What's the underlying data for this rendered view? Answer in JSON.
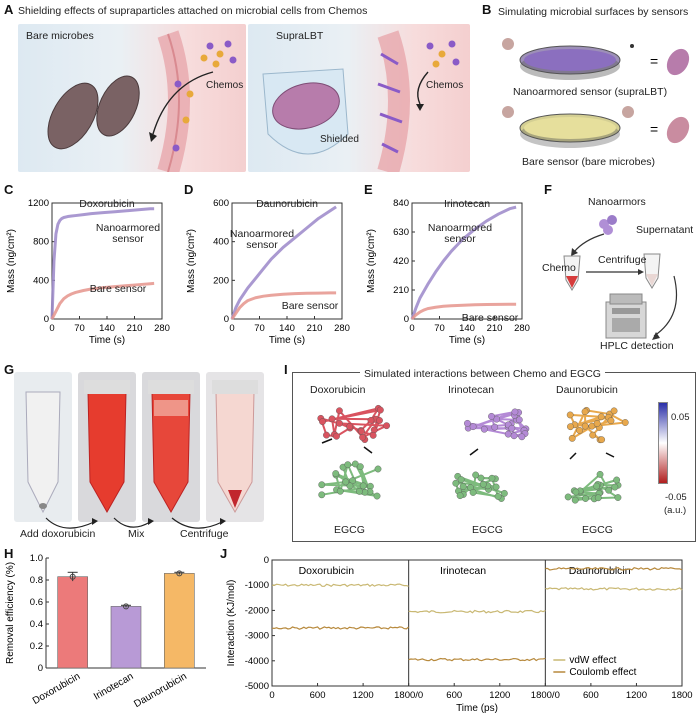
{
  "panel_labels": {
    "A": "A",
    "B": "B",
    "C": "C",
    "D": "D",
    "E": "E",
    "F": "F",
    "G": "G",
    "H": "H",
    "I": "I",
    "J": "J"
  },
  "panelA": {
    "title": "Shielding effects of supraparticles attached on microbial cells from Chemos",
    "left_label": "Bare microbes",
    "right_label": "SupraLBT",
    "chemos_left": "Chemos",
    "chemos_right": "Chemos",
    "shielded": "Shielded"
  },
  "panelB": {
    "title": "Simulating microbial surfaces by sensors",
    "top_caption": "Nanoarmored sensor (supraLBT)",
    "bottom_caption": "Bare sensor (bare microbes)",
    "equals": "="
  },
  "panelF": {
    "nanoarmors": "Nanoarmors",
    "supernatant": "Supernatant",
    "chemo": "Chemo",
    "centrifuge": "Centrifuge",
    "hplc": "HPLC detection"
  },
  "panelG": {
    "step1": "Add doxorubicin",
    "step2": "Mix",
    "step3": "Centrifuge"
  },
  "panelI": {
    "title": "Simulated interactions between Chemo and EGCG",
    "molecules": [
      "Doxorubicin",
      "Irinotecan",
      "Daunorubicin"
    ],
    "partner": [
      "EGCG",
      "EGCG",
      "EGCG"
    ],
    "scale_max": "0.05",
    "scale_min": "-0.05",
    "scale_unit": "(a.u.)",
    "colors": {
      "dox": "#d9535f",
      "iri": "#b48ad6",
      "dau": "#e8a84c",
      "egcg": "#7dbb7d"
    }
  },
  "chart_data": [
    {
      "id": "C",
      "type": "line",
      "title": "Doxorubicin",
      "xlabel": "Time (s)",
      "ylabel": "Mass (ng/cm²)",
      "xlim": [
        0,
        280
      ],
      "ylim": [
        0,
        1200
      ],
      "xticks": [
        0,
        70,
        140,
        210,
        280
      ],
      "yticks": [
        0,
        400,
        800,
        1200
      ],
      "series": [
        {
          "name": "Nanoarmored sensor",
          "color": "#9b87c9",
          "x": [
            0,
            5,
            10,
            15,
            20,
            25,
            30,
            40,
            50,
            60,
            80,
            100,
            130,
            160,
            190,
            220,
            250,
            260
          ],
          "y": [
            0,
            600,
            880,
            980,
            1020,
            1040,
            1050,
            1060,
            1065,
            1070,
            1080,
            1090,
            1100,
            1110,
            1120,
            1130,
            1140,
            1140
          ]
        },
        {
          "name": "Bare sensor",
          "color": "#e5948c",
          "x": [
            0,
            10,
            20,
            30,
            40,
            50,
            60,
            80,
            100,
            130,
            160,
            190,
            220,
            250,
            260
          ],
          "y": [
            0,
            80,
            160,
            210,
            240,
            260,
            275,
            295,
            310,
            325,
            335,
            345,
            355,
            365,
            368
          ]
        }
      ],
      "labels": [
        "Nanoarmored",
        "sensor",
        "Bare sensor"
      ]
    },
    {
      "id": "D",
      "type": "line",
      "title": "Daunorubicin",
      "xlabel": "Time (s)",
      "ylabel": "Mass (ng/cm²)",
      "xlim": [
        0,
        280
      ],
      "ylim": [
        0,
        600
      ],
      "xticks": [
        0,
        70,
        140,
        210,
        280
      ],
      "yticks": [
        0,
        200,
        400,
        600
      ],
      "series": [
        {
          "name": "Nanoarmored sensor",
          "color": "#9b87c9",
          "x": [
            0,
            10,
            20,
            30,
            40,
            60,
            80,
            100,
            130,
            160,
            190,
            220,
            250,
            265
          ],
          "y": [
            0,
            60,
            100,
            130,
            160,
            210,
            260,
            310,
            370,
            420,
            470,
            520,
            560,
            580
          ]
        },
        {
          "name": "Bare sensor",
          "color": "#e5948c",
          "x": [
            0,
            10,
            20,
            30,
            40,
            60,
            80,
            100,
            130,
            160,
            190,
            220,
            250,
            265
          ],
          "y": [
            0,
            30,
            60,
            80,
            95,
            110,
            118,
            123,
            128,
            131,
            133,
            134,
            135,
            135
          ]
        }
      ],
      "labels": [
        "Nanoarmored",
        "sensor",
        "Bare sensor"
      ]
    },
    {
      "id": "E",
      "type": "line",
      "title": "Irinotecan",
      "xlabel": "Time (s)",
      "ylabel": "Mass (ng/cm²)",
      "xlim": [
        0,
        280
      ],
      "ylim": [
        0,
        840
      ],
      "xticks": [
        0,
        70,
        140,
        210,
        280
      ],
      "yticks": [
        0,
        210,
        420,
        630,
        840
      ],
      "series": [
        {
          "name": "Nanoarmored sensor",
          "color": "#9b87c9",
          "x": [
            0,
            10,
            20,
            30,
            40,
            60,
            80,
            100,
            130,
            160,
            190,
            220,
            250,
            265
          ],
          "y": [
            0,
            80,
            150,
            200,
            250,
            340,
            420,
            490,
            580,
            650,
            710,
            760,
            800,
            810
          ]
        },
        {
          "name": "Bare sensor",
          "color": "#e5948c",
          "x": [
            0,
            10,
            20,
            30,
            40,
            60,
            80,
            100,
            130,
            160,
            190,
            220,
            250,
            265
          ],
          "y": [
            0,
            30,
            50,
            65,
            75,
            85,
            92,
            96,
            100,
            103,
            105,
            106,
            107,
            107
          ]
        }
      ],
      "labels": [
        "Nanoarmored",
        "sensor",
        "Bare sensor"
      ]
    },
    {
      "id": "H",
      "type": "bar",
      "ylabel": "Removal efficiency (%)",
      "categories": [
        "Doxorubicin",
        "Irinotecan",
        "Daunorubicin"
      ],
      "values": [
        0.83,
        0.56,
        0.86
      ],
      "errors": [
        0.04,
        0.01,
        0.01
      ],
      "colors": [
        "#ec7a7a",
        "#b89ad6",
        "#f5b866"
      ],
      "ylim": [
        0,
        1.0
      ],
      "yticks": [
        "0",
        "0.2",
        "0.4",
        "0.6",
        "0.8",
        "1.0"
      ]
    },
    {
      "id": "J",
      "type": "line",
      "xlabel": "Time (ps)",
      "ylabel": "Interaction (KJ/mol)",
      "ylim": [
        -5000,
        0
      ],
      "yticks": [
        "0",
        "-1000",
        "-2000",
        "-3000",
        "-4000",
        "-5000"
      ],
      "segments": [
        "Doxorubicin",
        "Irinotecan",
        "Daunorubicin"
      ],
      "xtick_labels": [
        "0",
        "600",
        "1200",
        "1800/0",
        "600",
        "1200",
        "1800/0",
        "600",
        "1200",
        "1800"
      ],
      "series": [
        {
          "name": "vdW effect",
          "color": "#c9b873",
          "values": [
            -1000,
            -2050,
            -1150
          ]
        },
        {
          "name": "Coulomb effect",
          "color": "#b7893c",
          "values": [
            -2700,
            -3950,
            -350
          ]
        }
      ],
      "legend": [
        "vdW effect",
        "Coulomb effect"
      ]
    }
  ]
}
